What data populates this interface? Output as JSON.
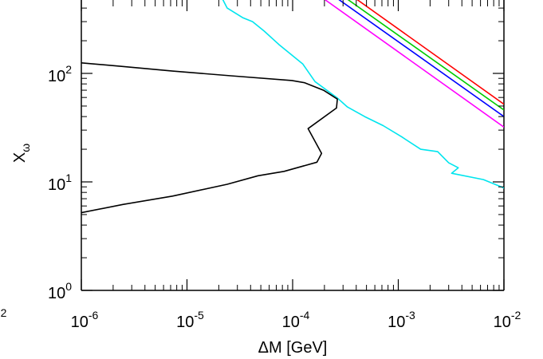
{
  "chart_data": {
    "type": "line",
    "xlabel": "ΔM [GeV]",
    "ylabel": "X",
    "ylabel_subscript": "ω",
    "x_scale": "log",
    "y_scale": "log",
    "xlim": [
      1e-06,
      0.01
    ],
    "ylim_visible": [
      1,
      1000
    ],
    "grid": false,
    "x_ticks": [
      {
        "base": "10",
        "exp": "-6"
      },
      {
        "base": "10",
        "exp": "-5"
      },
      {
        "base": "10",
        "exp": "-4"
      },
      {
        "base": "10",
        "exp": "-3"
      },
      {
        "base": "10",
        "exp": "-2"
      }
    ],
    "y_ticks": [
      {
        "base": "10",
        "exp": "0"
      },
      {
        "base": "10",
        "exp": "1"
      },
      {
        "base": "10",
        "exp": "2"
      }
    ],
    "left_cut_label": {
      "exp": "-2"
    },
    "series": [
      {
        "color": "#ff0000",
        "points": [
          [
            0.0001,
            1270
          ],
          [
            0.01,
            52
          ]
        ]
      },
      {
        "color": "#00cc00",
        "points": [
          [
            0.0001,
            1100
          ],
          [
            0.01,
            46
          ]
        ]
      },
      {
        "color": "#0000ff",
        "points": [
          [
            0.0001,
            960
          ],
          [
            0.01,
            40
          ]
        ]
      },
      {
        "color": "#ff00ff",
        "points": [
          [
            0.0001,
            780
          ],
          [
            0.01,
            32
          ]
        ]
      },
      {
        "color": "#00e5ee",
        "points": [
          [
            5.8e-06,
            1200
          ],
          [
            9e-06,
            1000
          ],
          [
            1.27e-05,
            800
          ],
          [
            1.55e-05,
            610
          ],
          [
            2.05e-05,
            540
          ],
          [
            2.4e-05,
            400
          ],
          [
            3.4e-05,
            325
          ],
          [
            4.17e-05,
            300
          ],
          [
            5.4e-05,
            245
          ],
          [
            7.4e-05,
            185
          ],
          [
            0.000125,
            122
          ],
          [
            0.000163,
            84
          ],
          [
            0.000267,
            59
          ],
          [
            0.00033,
            49
          ],
          [
            0.00048,
            40
          ],
          [
            0.00072,
            33
          ],
          [
            0.00108,
            26
          ],
          [
            0.00163,
            20
          ],
          [
            0.00236,
            19
          ],
          [
            0.003,
            15
          ],
          [
            0.0037,
            13.5
          ],
          [
            0.0032,
            12
          ],
          [
            0.0064,
            10.5
          ],
          [
            0.01,
            8.8
          ]
        ]
      },
      {
        "color": "#000000",
        "points": [
          [
            1e-06,
            125
          ],
          [
            2.4e-06,
            116
          ],
          [
            7.3e-06,
            105
          ],
          [
            2.6e-05,
            95
          ],
          [
            9.85e-05,
            86
          ],
          [
            0.00013,
            82
          ],
          [
            0.000196,
            70
          ],
          [
            0.000265,
            58
          ],
          [
            0.00026,
            48
          ],
          [
            0.00014,
            31
          ],
          [
            0.000188,
            18.3
          ],
          [
            0.00017,
            15.2
          ],
          [
            8.3e-05,
            12.5
          ],
          [
            4.7e-05,
            11.4
          ],
          [
            2.4e-05,
            9.5
          ],
          [
            7.3e-06,
            7.4
          ],
          [
            2.5e-06,
            6.2
          ],
          [
            1e-06,
            5.2
          ]
        ]
      }
    ]
  }
}
